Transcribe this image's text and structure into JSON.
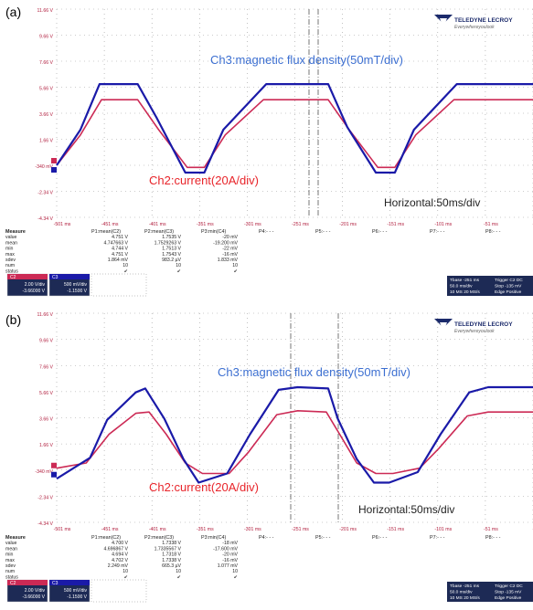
{
  "panels": [
    {
      "label": "(a)",
      "brand": "TELEDYNE LECROY",
      "brand_sub": "Everywhereyoulook",
      "y_ticks": [
        "11.66 V",
        "9.66 V",
        "7.66 V",
        "5.66 V",
        "3.66 V",
        "1.66 V",
        "-340 mV",
        "-2.34 V",
        "-4.34 V"
      ],
      "x_ticks": [
        "-501 ms",
        "-451 ms",
        "-401 ms",
        "-351 ms",
        "-301 ms",
        "-251 ms",
        "-201 ms",
        "-151 ms",
        "-101 ms",
        "-51 ms",
        "-1 ms"
      ],
      "annotations": {
        "ch3": "Ch3:magnetic flux density(50mT/div)",
        "ch2": "Ch2:current(20A/div)",
        "horizontal": "Horizontal:50ms/div"
      },
      "measure": {
        "headers": [
          "Measure",
          "P1:mean(C2)",
          "P2:mean(C3)",
          "P3:min(C4)",
          "P4:- - -",
          "P5:- - -",
          "P6:- - -",
          "P7:- - -",
          "P8:- - -"
        ],
        "rows": [
          [
            "value",
            "4.751 V",
            "1.7535 V",
            "-20 mV"
          ],
          [
            "mean",
            "4.747663 V",
            "1.7529263 V",
            "-19.200 mV"
          ],
          [
            "min",
            "4.744 V",
            "1.7513 V",
            "-22 mV"
          ],
          [
            "max",
            "4.751 V",
            "1.7543 V",
            "-16 mV"
          ],
          [
            "sdev",
            "1.864 mV",
            "983.2 µV",
            "1.833 mV"
          ],
          [
            "num",
            "10",
            "10",
            "10"
          ],
          [
            "status",
            "✔",
            "✔",
            "✔"
          ]
        ]
      },
      "channels": [
        {
          "name": "C2",
          "volts_div": "2.00 V/div",
          "offset": "-3.66000 V"
        },
        {
          "name": "C3",
          "volts_div": "500 mV/div",
          "offset": "-1.1500 V"
        }
      ],
      "timebase": {
        "label": "Tbase",
        "delay": "-251 ms",
        "time_div": "50.0 ms/div",
        "samples": "10 MS",
        "rate": "20 MS/s"
      },
      "trigger": {
        "label": "Trigger",
        "mode": "Stop",
        "level": "-135 mV",
        "type": "Edge",
        "slope": "Positive"
      }
    },
    {
      "label": "(b)",
      "brand": "TELEDYNE LECROY",
      "brand_sub": "Everywhereyoulook",
      "y_ticks": [
        "11.66 V",
        "9.66 V",
        "7.66 V",
        "5.66 V",
        "3.66 V",
        "1.66 V",
        "-340 mV",
        "-2.34 V",
        "-4.34 V"
      ],
      "x_ticks": [
        "-501 ms",
        "-451 ms",
        "-401 ms",
        "-351 ms",
        "-301 ms",
        "-251 ms",
        "-201 ms",
        "-151 ms",
        "-101 ms",
        "-51 ms",
        "-1 ms"
      ],
      "annotations": {
        "ch3": "Ch3:magnetic flux density(50mT/div)",
        "ch2": "Ch2:current(20A/div)",
        "horizontal": "Horizontal:50ms/div"
      },
      "measure": {
        "headers": [
          "Measure",
          "P1:mean(C2)",
          "P2:mean(C3)",
          "P3:min(C4)",
          "P4:- - -",
          "P5:- - -",
          "P6:- - -",
          "P7:- - -",
          "P8:- - -"
        ],
        "rows": [
          [
            "value",
            "4.700 V",
            "1.7338 V",
            "-18 mV"
          ],
          [
            "mean",
            "4.696867 V",
            "1.7335567 V",
            "-17.600 mV"
          ],
          [
            "min",
            "4.694 V",
            "1.7318 V",
            "-20 mV"
          ],
          [
            "max",
            "4.702 V",
            "1.7338 V",
            "-16 mV"
          ],
          [
            "sdev",
            "2.249 mV",
            "665.3 µV",
            "1.077 mV"
          ],
          [
            "num",
            "10",
            "10",
            "10"
          ],
          [
            "status",
            "✔",
            "✔",
            "✔"
          ]
        ]
      },
      "channels": [
        {
          "name": "C2",
          "volts_div": "2.00 V/div",
          "offset": "-3.66000 V"
        },
        {
          "name": "C3",
          "volts_div": "500 mV/div",
          "offset": "-1.1500 V"
        }
      ],
      "timebase": {
        "label": "Tbase",
        "delay": "-251 ms",
        "time_div": "50.0 ms/div",
        "samples": "10 MS",
        "rate": "20 MS/s"
      },
      "trigger": {
        "label": "Trigger",
        "mode": "Stop",
        "level": "-135 mV",
        "type": "Edge",
        "slope": "Positive"
      }
    }
  ],
  "colors": {
    "ch2": "#cc2a55",
    "ch3": "#1a1aa8",
    "ch3_label": "#3c6fd1",
    "ch2_label": "#e8242a",
    "grid": "#9a9a9a",
    "tick_text": "#b01c3c"
  },
  "chart_data": [
    {
      "type": "line",
      "panel": "(a)",
      "x_unit": "ms",
      "y_unit": "V",
      "xlim": [
        -501,
        -1
      ],
      "ylim": [
        -4.34,
        11.66
      ],
      "grid": true,
      "series": [
        {
          "name": "Ch3:magnetic flux density(50mT/div)",
          "color": "#1a1aa8",
          "x": [
            -501,
            -476,
            -456,
            -416,
            -396,
            -366,
            -346,
            -326,
            -281,
            -256,
            -216,
            -196,
            -166,
            -146,
            -126,
            -81,
            -56,
            -16,
            -1
          ],
          "y": [
            -0.34,
            2.4,
            5.9,
            5.9,
            3.3,
            -0.9,
            -0.9,
            2.4,
            5.9,
            5.9,
            5.9,
            2.6,
            -0.9,
            -0.9,
            2.4,
            5.9,
            5.9,
            5.9,
            5.9
          ]
        },
        {
          "name": "Ch2:current(20A/div)",
          "color": "#cc2a55",
          "x": [
            -501,
            -476,
            -454,
            -416,
            -394,
            -364,
            -346,
            -324,
            -284,
            -256,
            -216,
            -194,
            -164,
            -146,
            -124,
            -84,
            -56,
            -16,
            -1
          ],
          "y": [
            -0.34,
            2.0,
            4.7,
            4.7,
            2.4,
            -0.5,
            -0.5,
            2.0,
            4.7,
            4.7,
            4.7,
            2.4,
            -0.5,
            -0.5,
            2.0,
            4.7,
            4.7,
            4.7,
            4.7
          ]
        }
      ]
    },
    {
      "type": "line",
      "panel": "(b)",
      "x_unit": "ms",
      "y_unit": "V",
      "xlim": [
        -501,
        -1
      ],
      "ylim": [
        -4.34,
        11.66
      ],
      "grid": true,
      "series": [
        {
          "name": "Ch3:magnetic flux density(50mT/div)",
          "color": "#1a1aa8",
          "x": [
            -501,
            -466,
            -448,
            -418,
            -408,
            -388,
            -368,
            -352,
            -322,
            -298,
            -268,
            -248,
            -216,
            -206,
            -186,
            -168,
            -152,
            -122,
            -98,
            -68,
            -48,
            -16,
            -1
          ],
          "y": [
            -1.0,
            0.6,
            3.5,
            5.6,
            5.9,
            3.6,
            0.5,
            -1.3,
            -0.6,
            2.4,
            5.8,
            6.0,
            5.9,
            3.6,
            0.5,
            -1.3,
            -1.3,
            -0.5,
            2.4,
            5.6,
            6.0,
            6.0,
            6.0
          ],
          "approximate": true
        },
        {
          "name": "Ch2:current(20A/div)",
          "color": "#cc2a55",
          "x": [
            -501,
            -470,
            -446,
            -418,
            -404,
            -386,
            -366,
            -348,
            -320,
            -300,
            -270,
            -248,
            -218,
            -204,
            -186,
            -166,
            -148,
            -120,
            -100,
            -70,
            -48,
            -18,
            -1
          ],
          "y": [
            -0.2,
            0.2,
            2.4,
            4.0,
            4.1,
            2.4,
            0.2,
            -0.6,
            -0.6,
            1.0,
            3.9,
            4.2,
            4.1,
            2.4,
            0.2,
            -0.6,
            -0.6,
            -0.2,
            1.3,
            3.8,
            4.1,
            4.1,
            4.1
          ],
          "approximate": true
        }
      ]
    }
  ]
}
